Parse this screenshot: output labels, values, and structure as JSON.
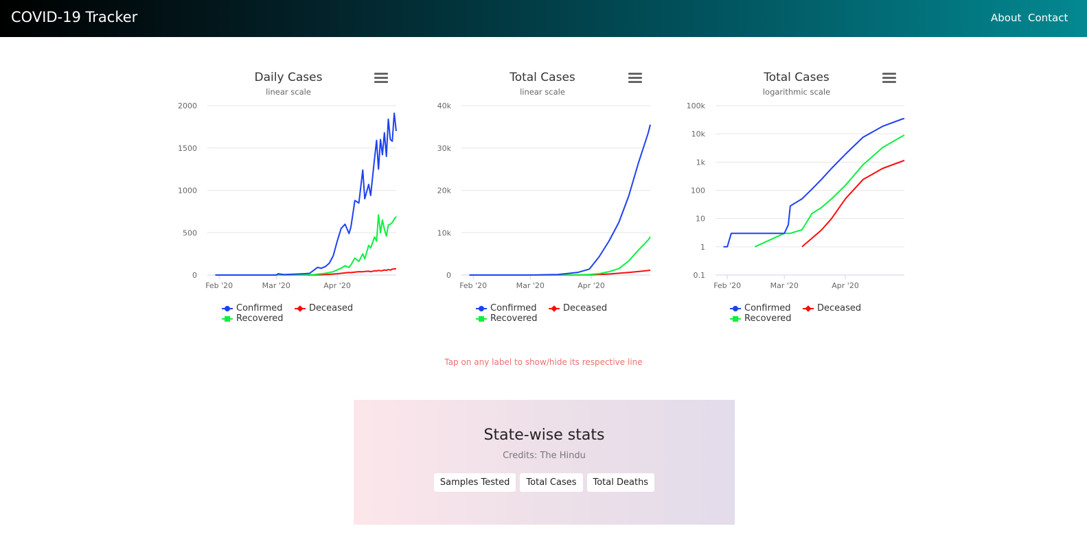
{
  "navbar": {
    "brand": "COVID-19 Tracker",
    "links": [
      "About",
      "Contact"
    ]
  },
  "charts": [
    {
      "title": "Daily Cases",
      "subtitle": "linear scale"
    },
    {
      "title": "Total Cases",
      "subtitle": "linear scale"
    },
    {
      "title": "Total Cases",
      "subtitle": "logarithmic scale"
    }
  ],
  "legend": [
    {
      "label": "Confirmed",
      "color": "#1d41f0",
      "marker": "circle"
    },
    {
      "label": "Deceased",
      "color": "#ff0a0a",
      "marker": "diamond"
    },
    {
      "label": "Recovered",
      "color": "#0cf040",
      "marker": "square"
    }
  ],
  "hint": "Tap on any label to show/hide its respective line",
  "stats": {
    "title": "State-wise stats",
    "credits": "Credits: The Hindu",
    "buttons": [
      "Samples Tested",
      "Total Cases",
      "Total Deaths"
    ]
  },
  "chart_data": [
    {
      "type": "line",
      "title": "Daily Cases",
      "subtitle": "linear scale",
      "y_scale": "linear",
      "ylim": [
        0,
        2000
      ],
      "y_ticks": [
        "0",
        "500",
        "1000",
        "1500",
        "2000"
      ],
      "x_ticks": [
        "Feb '20",
        "Mar '20",
        "Apr '20"
      ],
      "x": [
        "2020-01-30",
        "2020-02-15",
        "2020-03-01",
        "2020-03-02",
        "2020-03-05",
        "2020-03-10",
        "2020-03-15",
        "2020-03-18",
        "2020-03-20",
        "2020-03-22",
        "2020-03-24",
        "2020-03-26",
        "2020-03-28",
        "2020-03-30",
        "2020-04-01",
        "2020-04-03",
        "2020-04-05",
        "2020-04-07",
        "2020-04-08",
        "2020-04-10",
        "2020-04-12",
        "2020-04-14",
        "2020-04-15",
        "2020-04-17",
        "2020-04-18",
        "2020-04-20",
        "2020-04-21",
        "2020-04-22",
        "2020-04-23",
        "2020-04-24",
        "2020-04-25",
        "2020-04-26",
        "2020-04-27",
        "2020-04-28",
        "2020-04-29",
        "2020-04-30",
        "2020-05-01"
      ],
      "series": [
        {
          "name": "Confirmed",
          "values": [
            0,
            0,
            0,
            15,
            5,
            10,
            15,
            20,
            55,
            90,
            80,
            100,
            140,
            227,
            400,
            550,
            600,
            490,
            570,
            880,
            850,
            1240,
            900,
            1070,
            940,
            1380,
            1590,
            1250,
            1600,
            1420,
            1680,
            1400,
            1840,
            1600,
            1580,
            1910,
            1700
          ]
        },
        {
          "name": "Recovered",
          "values": [
            0,
            0,
            0,
            0,
            0,
            0,
            0,
            3,
            5,
            10,
            15,
            20,
            30,
            40,
            60,
            80,
            110,
            90,
            120,
            200,
            160,
            250,
            190,
            350,
            320,
            450,
            400,
            710,
            500,
            650,
            540,
            460,
            590,
            600,
            620,
            660,
            690
          ]
        },
        {
          "name": "Deceased",
          "values": [
            0,
            0,
            0,
            0,
            0,
            0,
            0,
            0,
            1,
            2,
            3,
            5,
            8,
            12,
            15,
            20,
            25,
            30,
            28,
            35,
            40,
            38,
            42,
            45,
            40,
            50,
            48,
            55,
            50,
            52,
            60,
            55,
            65,
            58,
            70,
            72,
            75
          ]
        }
      ]
    },
    {
      "type": "line",
      "title": "Total Cases",
      "subtitle": "linear scale",
      "y_scale": "linear",
      "ylim": [
        0,
        40000
      ],
      "y_ticks": [
        "0",
        "10k",
        "20k",
        "30k",
        "40k"
      ],
      "x_ticks": [
        "Feb '20",
        "Mar '20",
        "Apr '20"
      ],
      "x": [
        "2020-01-30",
        "2020-03-01",
        "2020-03-15",
        "2020-03-25",
        "2020-03-31",
        "2020-04-05",
        "2020-04-10",
        "2020-04-15",
        "2020-04-20",
        "2020-04-25",
        "2020-04-30",
        "2020-05-01"
      ],
      "series": [
        {
          "name": "Confirmed",
          "values": [
            1,
            3,
            110,
            600,
            1400,
            4300,
            8000,
            12400,
            18600,
            26500,
            33600,
            35500
          ]
        },
        {
          "name": "Recovered",
          "values": [
            0,
            3,
            15,
            40,
            120,
            330,
            800,
            1500,
            3300,
            5900,
            8300,
            9000
          ]
        },
        {
          "name": "Deceased",
          "values": [
            0,
            0,
            2,
            10,
            35,
            120,
            240,
            420,
            600,
            820,
            1075,
            1150
          ]
        }
      ]
    },
    {
      "type": "line",
      "title": "Total Cases",
      "subtitle": "logarithmic scale",
      "y_scale": "log",
      "ylim": [
        0.1,
        100000
      ],
      "y_ticks": [
        "0.1",
        "1",
        "10",
        "100",
        "1k",
        "10k",
        "100k"
      ],
      "x_ticks": [
        "Feb '20",
        "Mar '20",
        "Apr '20"
      ],
      "x": [
        "2020-01-30",
        "2020-02-01",
        "2020-02-03",
        "2020-02-15",
        "2020-03-01",
        "2020-03-03",
        "2020-03-04",
        "2020-03-10",
        "2020-03-15",
        "2020-03-20",
        "2020-03-25",
        "2020-04-01",
        "2020-04-10",
        "2020-04-20",
        "2020-04-30",
        "2020-05-01"
      ],
      "series": [
        {
          "name": "Confirmed",
          "values": [
            1,
            1,
            3,
            3,
            3,
            6,
            28,
            50,
            110,
            250,
            600,
            1900,
            7600,
            18600,
            33600,
            35000
          ]
        },
        {
          "name": "Recovered",
          "values": [
            null,
            null,
            null,
            1,
            3,
            3,
            3,
            4,
            15,
            25,
            50,
            150,
            800,
            3300,
            8300,
            9000
          ]
        },
        {
          "name": "Deceased",
          "values": [
            null,
            null,
            null,
            null,
            null,
            null,
            null,
            1,
            2,
            4,
            10,
            50,
            240,
            600,
            1075,
            1150
          ]
        }
      ]
    }
  ]
}
